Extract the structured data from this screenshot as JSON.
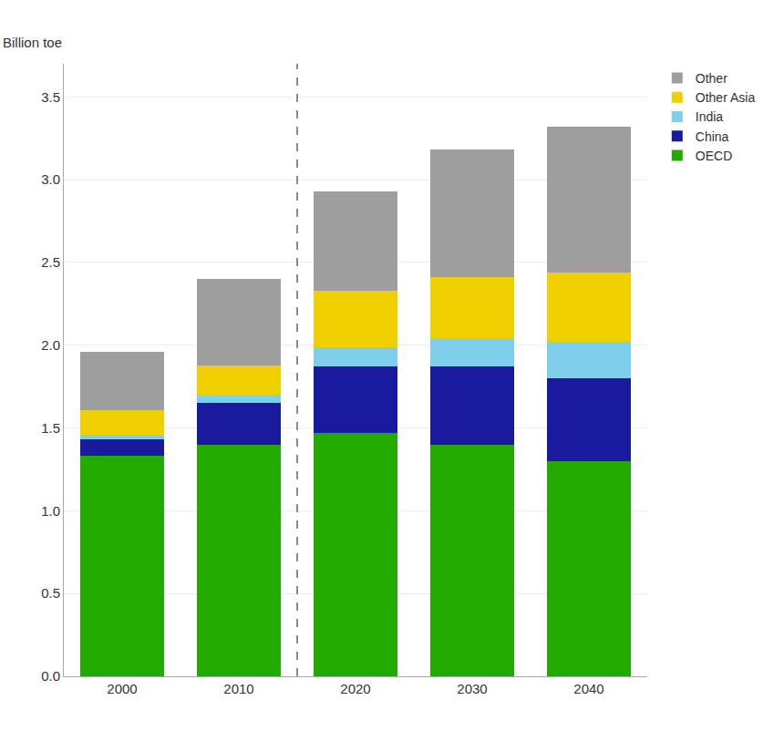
{
  "chart_data": {
    "type": "bar",
    "stacked": true,
    "ylabel": "Billion toe",
    "categories": [
      "2000",
      "2010",
      "2020",
      "2030",
      "2040"
    ],
    "series": [
      {
        "name": "OECD",
        "color": "#22aa00",
        "values": [
          1.33,
          1.4,
          1.47,
          1.4,
          1.3
        ]
      },
      {
        "name": "China",
        "color": "#1a1a9f",
        "values": [
          0.1,
          0.25,
          0.4,
          0.47,
          0.5
        ]
      },
      {
        "name": "India",
        "color": "#7ecfec",
        "values": [
          0.03,
          0.05,
          0.12,
          0.17,
          0.22
        ]
      },
      {
        "name": "Other Asia",
        "color": "#f0d000",
        "values": [
          0.15,
          0.18,
          0.34,
          0.37,
          0.42
        ]
      },
      {
        "name": "Other",
        "color": "#9e9e9e",
        "values": [
          0.35,
          0.52,
          0.6,
          0.77,
          0.88
        ]
      }
    ],
    "ylim": [
      0,
      3.7
    ],
    "yticks": [
      {
        "value": 0,
        "label": "0.0"
      },
      0.5,
      {
        "value": 1,
        "label": "1.0"
      },
      1.5,
      {
        "value": 2,
        "label": "2.0"
      },
      2.5,
      {
        "value": 3,
        "label": "3.0"
      },
      3.5
    ],
    "grid": true,
    "legend": "upper right"
  }
}
